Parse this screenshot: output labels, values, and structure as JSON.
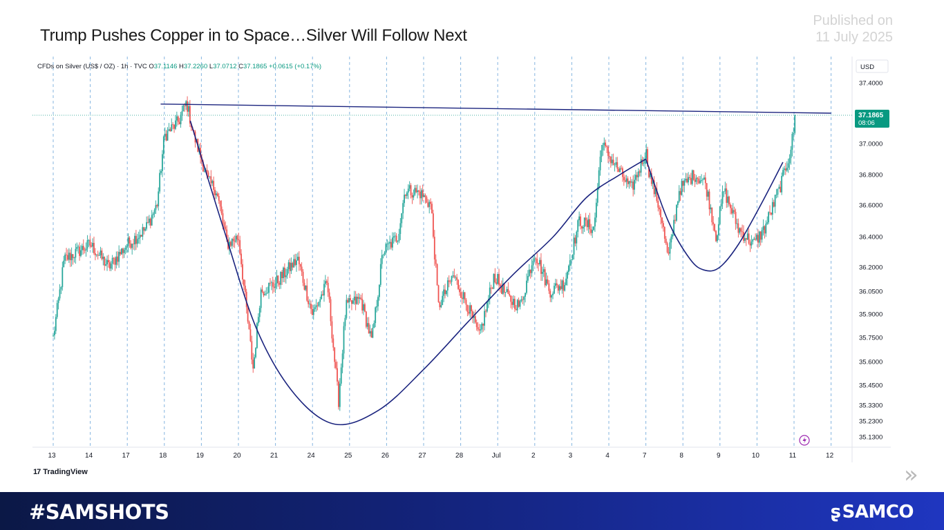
{
  "slide": {
    "headline": "Trump Pushes Copper in to Space…Silver Will Follow Next",
    "published_line1": "Published on",
    "published_line2": "11 July 2025"
  },
  "chart_data": {
    "type": "candlestick",
    "title": "",
    "symbol_label": "CFDs on Silver (US$ / OZ) · 1h · TVC",
    "ohlc": {
      "o_label": "O",
      "o": "37.1146",
      "h_label": "H",
      "h": "37.2260",
      "l_label": "L",
      "l": "37.0712",
      "c_label": "C",
      "c": "37.1865",
      "change": "+0.0615 (+0.17%)"
    },
    "currency": "USD",
    "last_price": "37.1865",
    "countdown": "08:06",
    "x_ticks": [
      "13",
      "14",
      "17",
      "18",
      "19",
      "20",
      "21",
      "24",
      "25",
      "26",
      "27",
      "28",
      "Jul",
      "2",
      "3",
      "4",
      "7",
      "8",
      "9",
      "10",
      "11",
      "12"
    ],
    "y_ticks": [
      "37.4000",
      "37.0000",
      "36.8000",
      "36.6000",
      "36.4000",
      "36.2000",
      "36.0500",
      "35.9000",
      "35.7500",
      "35.6000",
      "35.4500",
      "35.3300",
      "35.2300",
      "35.1300"
    ],
    "ylim": [
      35.05,
      37.5
    ],
    "grid": true,
    "colors": {
      "up": "#26a69a",
      "down": "#ef5350",
      "pattern": "#1a237e",
      "vgrid": "#5b9bd5",
      "last": "#089981"
    },
    "anchors": [
      {
        "x": 0.0,
        "y": 35.75
      },
      {
        "x": 0.3,
        "y": 36.25
      },
      {
        "x": 1.0,
        "y": 36.35
      },
      {
        "x": 1.5,
        "y": 36.2
      },
      {
        "x": 2.0,
        "y": 36.35
      },
      {
        "x": 2.5,
        "y": 36.45
      },
      {
        "x": 2.8,
        "y": 36.6
      },
      {
        "x": 3.0,
        "y": 37.05
      },
      {
        "x": 3.4,
        "y": 37.15
      },
      {
        "x": 3.6,
        "y": 37.27
      },
      {
        "x": 3.8,
        "y": 37.05
      },
      {
        "x": 4.2,
        "y": 36.75
      },
      {
        "x": 4.4,
        "y": 36.7
      },
      {
        "x": 4.7,
        "y": 36.35
      },
      {
        "x": 5.0,
        "y": 36.4
      },
      {
        "x": 5.3,
        "y": 35.75
      },
      {
        "x": 5.4,
        "y": 35.55
      },
      {
        "x": 5.6,
        "y": 36.05
      },
      {
        "x": 6.0,
        "y": 36.1
      },
      {
        "x": 6.6,
        "y": 36.25
      },
      {
        "x": 7.0,
        "y": 35.9
      },
      {
        "x": 7.4,
        "y": 36.1
      },
      {
        "x": 7.7,
        "y": 35.35
      },
      {
        "x": 7.9,
        "y": 35.95
      },
      {
        "x": 8.3,
        "y": 36.0
      },
      {
        "x": 8.6,
        "y": 35.72
      },
      {
        "x": 8.9,
        "y": 36.3
      },
      {
        "x": 9.3,
        "y": 36.4
      },
      {
        "x": 9.5,
        "y": 36.7
      },
      {
        "x": 9.9,
        "y": 36.68
      },
      {
        "x": 10.2,
        "y": 36.6
      },
      {
        "x": 10.4,
        "y": 35.95
      },
      {
        "x": 10.8,
        "y": 36.15
      },
      {
        "x": 11.2,
        "y": 35.95
      },
      {
        "x": 11.5,
        "y": 35.75
      },
      {
        "x": 11.9,
        "y": 36.15
      },
      {
        "x": 12.3,
        "y": 36.0
      },
      {
        "x": 12.6,
        "y": 35.95
      },
      {
        "x": 13.0,
        "y": 36.3
      },
      {
        "x": 13.4,
        "y": 36.05
      },
      {
        "x": 13.8,
        "y": 36.1
      },
      {
        "x": 14.2,
        "y": 36.5
      },
      {
        "x": 14.6,
        "y": 36.45
      },
      {
        "x": 14.8,
        "y": 37.0
      },
      {
        "x": 15.2,
        "y": 36.85
      },
      {
        "x": 15.6,
        "y": 36.7
      },
      {
        "x": 16.0,
        "y": 36.95
      },
      {
        "x": 16.1,
        "y": 36.8
      },
      {
        "x": 16.4,
        "y": 36.55
      },
      {
        "x": 16.6,
        "y": 36.25
      },
      {
        "x": 16.9,
        "y": 36.7
      },
      {
        "x": 17.3,
        "y": 36.8
      },
      {
        "x": 17.6,
        "y": 36.75
      },
      {
        "x": 17.9,
        "y": 36.4
      },
      {
        "x": 18.1,
        "y": 36.7
      },
      {
        "x": 18.5,
        "y": 36.45
      },
      {
        "x": 18.9,
        "y": 36.35
      },
      {
        "x": 19.2,
        "y": 36.45
      },
      {
        "x": 19.6,
        "y": 36.7
      },
      {
        "x": 19.9,
        "y": 36.95
      },
      {
        "x": 20.05,
        "y": 37.18
      }
    ],
    "pattern_resistance": [
      {
        "x": 2.9,
        "y": 37.26
      },
      {
        "x": 21.0,
        "y": 37.2
      }
    ],
    "cup_curve": [
      {
        "x": 3.7,
        "y": 37.15
      },
      {
        "x": 4.6,
        "y": 36.45
      },
      {
        "x": 5.5,
        "y": 35.8
      },
      {
        "x": 6.5,
        "y": 35.4
      },
      {
        "x": 7.6,
        "y": 35.21
      },
      {
        "x": 8.8,
        "y": 35.3
      },
      {
        "x": 10.0,
        "y": 35.55
      },
      {
        "x": 11.2,
        "y": 35.85
      },
      {
        "x": 12.4,
        "y": 36.15
      },
      {
        "x": 13.5,
        "y": 36.4
      },
      {
        "x": 14.4,
        "y": 36.65
      },
      {
        "x": 15.3,
        "y": 36.8
      },
      {
        "x": 16.0,
        "y": 36.9
      }
    ],
    "handle_curve": [
      {
        "x": 16.0,
        "y": 36.9
      },
      {
        "x": 16.6,
        "y": 36.5
      },
      {
        "x": 17.2,
        "y": 36.25
      },
      {
        "x": 17.6,
        "y": 36.18
      },
      {
        "x": 18.0,
        "y": 36.2
      },
      {
        "x": 18.5,
        "y": 36.35
      },
      {
        "x": 19.1,
        "y": 36.6
      },
      {
        "x": 19.7,
        "y": 36.88
      }
    ]
  },
  "branding": {
    "tradingview": "TradingView",
    "hashtag": "#SAMSHOTS",
    "brand": "SAMCO",
    "next_icon": "chevron-double-right-icon"
  }
}
